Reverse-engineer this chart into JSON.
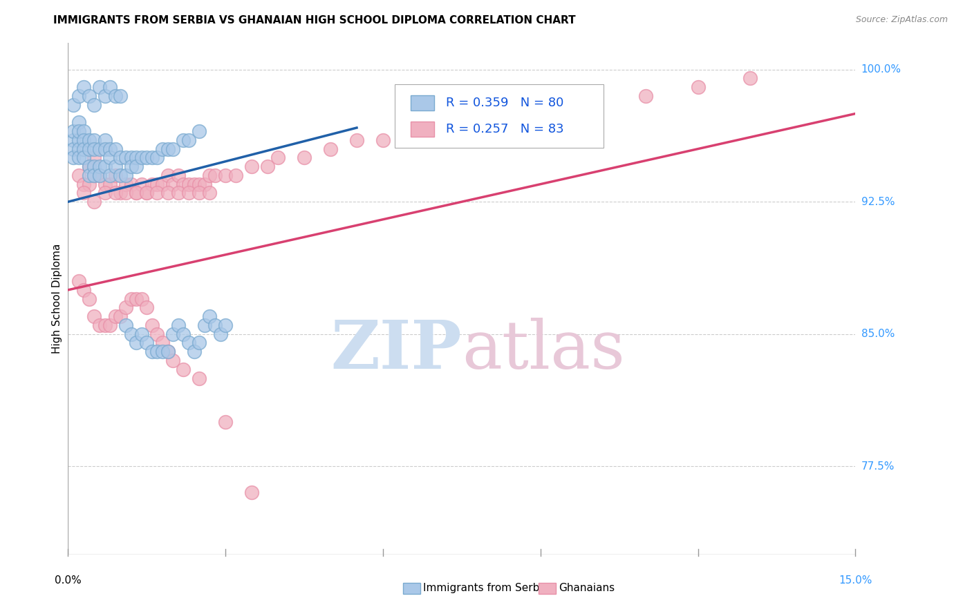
{
  "title": "IMMIGRANTS FROM SERBIA VS GHANAIAN HIGH SCHOOL DIPLOMA CORRELATION CHART",
  "source": "Source: ZipAtlas.com",
  "ylabel": "High School Diploma",
  "ytick_labels": [
    "77.5%",
    "85.0%",
    "92.5%",
    "100.0%"
  ],
  "ytick_values": [
    0.775,
    0.85,
    0.925,
    1.0
  ],
  "xtick_labels": [
    "0.0%",
    "15.0%"
  ],
  "xlim": [
    0.0,
    0.15
  ],
  "ylim": [
    0.725,
    1.015
  ],
  "legend_text1": "R = 0.359   N = 80",
  "legend_text2": "R = 0.257   N = 83",
  "blue_fill": "#aac8e8",
  "blue_edge": "#7aaad0",
  "pink_fill": "#f0b0c0",
  "pink_edge": "#e890a8",
  "trend_blue": "#2060a8",
  "trend_pink": "#d84070",
  "legend_text_color": "#1155dd",
  "ytick_color": "#3399ff",
  "xtick_right_color": "#3399ff",
  "watermark_zip_color": "#ccddf0",
  "watermark_atlas_color": "#e8c8d8",
  "background_color": "#ffffff",
  "grid_color": "#cccccc",
  "serbia_x": [
    0.001,
    0.001,
    0.001,
    0.001,
    0.002,
    0.002,
    0.002,
    0.002,
    0.002,
    0.003,
    0.003,
    0.003,
    0.003,
    0.004,
    0.004,
    0.004,
    0.004,
    0.005,
    0.005,
    0.005,
    0.005,
    0.006,
    0.006,
    0.006,
    0.007,
    0.007,
    0.007,
    0.008,
    0.008,
    0.008,
    0.009,
    0.009,
    0.01,
    0.01,
    0.011,
    0.011,
    0.012,
    0.012,
    0.013,
    0.013,
    0.014,
    0.015,
    0.016,
    0.017,
    0.018,
    0.019,
    0.02,
    0.022,
    0.023,
    0.025,
    0.001,
    0.002,
    0.003,
    0.004,
    0.005,
    0.006,
    0.007,
    0.008,
    0.009,
    0.01,
    0.011,
    0.012,
    0.013,
    0.014,
    0.015,
    0.016,
    0.017,
    0.018,
    0.019,
    0.02,
    0.021,
    0.022,
    0.023,
    0.024,
    0.025,
    0.026,
    0.027,
    0.028,
    0.029,
    0.03
  ],
  "serbia_y": [
    0.96,
    0.955,
    0.95,
    0.965,
    0.97,
    0.96,
    0.955,
    0.965,
    0.95,
    0.965,
    0.96,
    0.955,
    0.95,
    0.96,
    0.955,
    0.945,
    0.94,
    0.96,
    0.955,
    0.945,
    0.94,
    0.955,
    0.945,
    0.94,
    0.96,
    0.955,
    0.945,
    0.955,
    0.95,
    0.94,
    0.955,
    0.945,
    0.95,
    0.94,
    0.95,
    0.94,
    0.95,
    0.945,
    0.95,
    0.945,
    0.95,
    0.95,
    0.95,
    0.95,
    0.955,
    0.955,
    0.955,
    0.96,
    0.96,
    0.965,
    0.98,
    0.985,
    0.99,
    0.985,
    0.98,
    0.99,
    0.985,
    0.99,
    0.985,
    0.985,
    0.855,
    0.85,
    0.845,
    0.85,
    0.845,
    0.84,
    0.84,
    0.84,
    0.84,
    0.85,
    0.855,
    0.85,
    0.845,
    0.84,
    0.845,
    0.855,
    0.86,
    0.855,
    0.85,
    0.855
  ],
  "ghana_x": [
    0.002,
    0.003,
    0.004,
    0.004,
    0.005,
    0.005,
    0.006,
    0.007,
    0.008,
    0.009,
    0.01,
    0.011,
    0.012,
    0.013,
    0.014,
    0.015,
    0.016,
    0.017,
    0.018,
    0.019,
    0.02,
    0.021,
    0.022,
    0.023,
    0.024,
    0.025,
    0.026,
    0.027,
    0.028,
    0.03,
    0.032,
    0.035,
    0.038,
    0.04,
    0.045,
    0.05,
    0.055,
    0.06,
    0.065,
    0.07,
    0.075,
    0.085,
    0.09,
    0.1,
    0.11,
    0.12,
    0.13,
    0.003,
    0.005,
    0.007,
    0.009,
    0.011,
    0.013,
    0.015,
    0.017,
    0.019,
    0.021,
    0.023,
    0.025,
    0.027,
    0.002,
    0.003,
    0.004,
    0.005,
    0.006,
    0.007,
    0.008,
    0.009,
    0.01,
    0.011,
    0.012,
    0.013,
    0.014,
    0.015,
    0.016,
    0.017,
    0.018,
    0.019,
    0.02,
    0.022,
    0.025,
    0.03,
    0.035
  ],
  "ghana_y": [
    0.94,
    0.935,
    0.935,
    0.945,
    0.94,
    0.95,
    0.94,
    0.935,
    0.935,
    0.94,
    0.93,
    0.935,
    0.935,
    0.93,
    0.935,
    0.93,
    0.935,
    0.935,
    0.935,
    0.94,
    0.935,
    0.94,
    0.935,
    0.935,
    0.935,
    0.935,
    0.935,
    0.94,
    0.94,
    0.94,
    0.94,
    0.945,
    0.945,
    0.95,
    0.95,
    0.955,
    0.96,
    0.96,
    0.965,
    0.965,
    0.97,
    0.975,
    0.975,
    0.98,
    0.985,
    0.99,
    0.995,
    0.93,
    0.925,
    0.93,
    0.93,
    0.93,
    0.93,
    0.93,
    0.93,
    0.93,
    0.93,
    0.93,
    0.93,
    0.93,
    0.88,
    0.875,
    0.87,
    0.86,
    0.855,
    0.855,
    0.855,
    0.86,
    0.86,
    0.865,
    0.87,
    0.87,
    0.87,
    0.865,
    0.855,
    0.85,
    0.845,
    0.84,
    0.835,
    0.83,
    0.825,
    0.8,
    0.76
  ]
}
